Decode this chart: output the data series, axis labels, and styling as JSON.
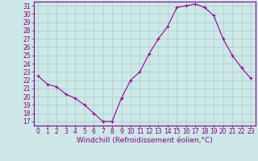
{
  "x": [
    0,
    1,
    2,
    3,
    4,
    5,
    6,
    7,
    8,
    9,
    10,
    11,
    12,
    13,
    14,
    15,
    16,
    17,
    18,
    19,
    20,
    21,
    22,
    23
  ],
  "y": [
    22.5,
    21.5,
    21.2,
    20.3,
    19.8,
    19.0,
    18.0,
    17.0,
    17.0,
    19.8,
    22.0,
    23.0,
    25.2,
    27.0,
    28.5,
    30.8,
    31.0,
    31.2,
    30.8,
    29.8,
    27.0,
    25.0,
    23.5,
    22.2
  ],
  "line_color": "#990099",
  "marker": "+",
  "marker_size": 3,
  "bg_color": "#cce8e8",
  "grid_color": "#aacccc",
  "xlabel": "Windchill (Refroidissement éolien,°C)",
  "xlim": [
    -0.5,
    23.5
  ],
  "ylim": [
    16.5,
    31.5
  ],
  "yticks": [
    17,
    18,
    19,
    20,
    21,
    22,
    23,
    24,
    25,
    26,
    27,
    28,
    29,
    30,
    31
  ],
  "xticks": [
    0,
    1,
    2,
    3,
    4,
    5,
    6,
    7,
    8,
    9,
    10,
    11,
    12,
    13,
    14,
    15,
    16,
    17,
    18,
    19,
    20,
    21,
    22,
    23
  ],
  "tick_label_color": "#880088",
  "axis_color": "#880088",
  "font_size": 5.5,
  "xlabel_fontsize": 6.5
}
